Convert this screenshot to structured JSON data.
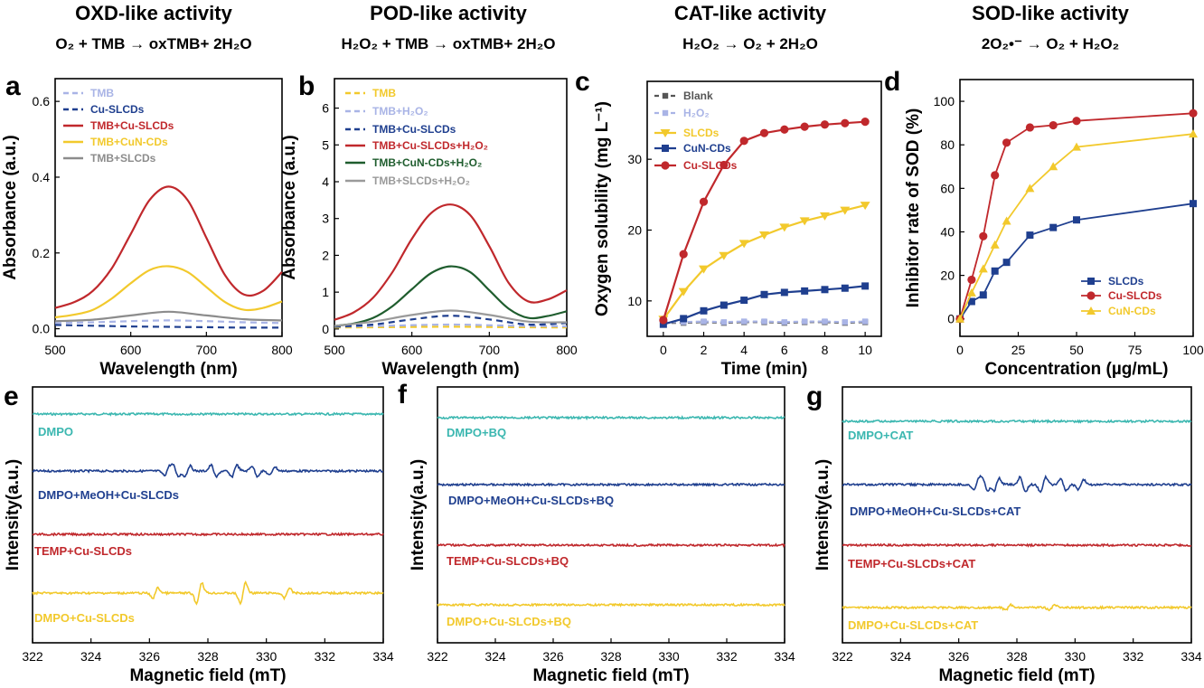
{
  "headers": [
    {
      "title": "OXD-like activity",
      "eq": "O₂ + TMB → oxTMB+ 2H₂O"
    },
    {
      "title": "POD-like activity",
      "eq": "H₂O₂ + TMB → oxTMB+ 2H₂O"
    },
    {
      "title": "CAT-like activity",
      "eq": "H₂O₂ → O₂ + 2H₂O"
    },
    {
      "title": "SOD-like activity",
      "eq": "2O₂•⁻ → O₂ + H₂O₂"
    }
  ],
  "chart_data": [
    {
      "panel": "a",
      "type": "line",
      "xlabel": "Wavelength (nm)",
      "ylabel": "Absorbance (a.u.)",
      "xlim": [
        500,
        800
      ],
      "ylim": [
        -0.02,
        0.66
      ],
      "xticks": [
        "500",
        "600",
        "700",
        "800"
      ],
      "yticks": [
        "0.0",
        "0.2",
        "0.4",
        "0.6"
      ],
      "legend_position": "top-left",
      "series": [
        {
          "name": "TMB",
          "color": "#a9b4e6",
          "dashed": true,
          "x": [
            500,
            550,
            600,
            650,
            700,
            750,
            800
          ],
          "y": [
            0.015,
            0.017,
            0.02,
            0.022,
            0.02,
            0.017,
            0.015
          ]
        },
        {
          "name": "Cu-SLCDs",
          "color": "#1f3f8f",
          "dashed": true,
          "x": [
            500,
            550,
            600,
            650,
            700,
            750,
            800
          ],
          "y": [
            0.01,
            0.008,
            0.006,
            0.005,
            0.004,
            0.003,
            0.003
          ]
        },
        {
          "name": "TMB+Cu-SLCDs",
          "color": "#c0282c",
          "x": [
            500,
            525,
            550,
            575,
            600,
            625,
            650,
            675,
            700,
            725,
            750,
            775,
            800
          ],
          "y": [
            0.055,
            0.07,
            0.1,
            0.16,
            0.25,
            0.34,
            0.375,
            0.34,
            0.24,
            0.14,
            0.09,
            0.1,
            0.15
          ]
        },
        {
          "name": "TMB+CuN-CDs",
          "color": "#f2c92c",
          "x": [
            500,
            525,
            550,
            575,
            600,
            625,
            650,
            675,
            700,
            725,
            750,
            775,
            800
          ],
          "y": [
            0.03,
            0.037,
            0.05,
            0.08,
            0.12,
            0.155,
            0.165,
            0.15,
            0.11,
            0.07,
            0.05,
            0.055,
            0.072
          ]
        },
        {
          "name": "TMB+SLCDs",
          "color": "#8c8c8c",
          "x": [
            500,
            550,
            600,
            650,
            700,
            750,
            800
          ],
          "y": [
            0.02,
            0.024,
            0.035,
            0.045,
            0.035,
            0.025,
            0.022
          ]
        }
      ]
    },
    {
      "panel": "b",
      "type": "line",
      "xlabel": "Wavelength (nm)",
      "ylabel": "Absorbance (a.u.)",
      "xlim": [
        500,
        800
      ],
      "ylim": [
        -0.2,
        6.8
      ],
      "xticks": [
        "500",
        "600",
        "700",
        "800"
      ],
      "yticks": [
        "0",
        "1",
        "2",
        "3",
        "4",
        "5",
        "6"
      ],
      "legend_position": "top-left",
      "series": [
        {
          "name": "TMB",
          "color": "#f2c92c",
          "dashed": true,
          "x": [
            500,
            575,
            650,
            725,
            800
          ],
          "y": [
            0.04,
            0.05,
            0.06,
            0.05,
            0.04
          ]
        },
        {
          "name": "TMB+H₂O₂",
          "color": "#a9b4e6",
          "dashed": true,
          "x": [
            500,
            575,
            650,
            725,
            800
          ],
          "y": [
            0.06,
            0.09,
            0.12,
            0.09,
            0.07
          ]
        },
        {
          "name": "TMB+Cu-SLCDs",
          "color": "#1f3f8f",
          "dashed": true,
          "x": [
            500,
            550,
            600,
            650,
            700,
            750,
            800
          ],
          "y": [
            0.06,
            0.12,
            0.26,
            0.36,
            0.26,
            0.12,
            0.16
          ]
        },
        {
          "name": "TMB+Cu-SLCDs+H₂O₂",
          "color": "#c0282c",
          "x": [
            500,
            525,
            550,
            575,
            600,
            625,
            650,
            675,
            700,
            725,
            750,
            775,
            800
          ],
          "y": [
            0.25,
            0.45,
            0.85,
            1.55,
            2.45,
            3.15,
            3.38,
            3.1,
            2.25,
            1.25,
            0.75,
            0.8,
            1.05
          ]
        },
        {
          "name": "TMB+CuN-CDs+H₂O₂",
          "color": "#1f5d2e",
          "x": [
            500,
            525,
            550,
            575,
            600,
            625,
            650,
            675,
            700,
            725,
            750,
            775,
            800
          ],
          "y": [
            0.08,
            0.15,
            0.3,
            0.62,
            1.08,
            1.52,
            1.7,
            1.55,
            1.05,
            0.55,
            0.3,
            0.35,
            0.48
          ]
        },
        {
          "name": "TMB+SLCDs+H₂O₂",
          "color": "#9a9a9a",
          "x": [
            500,
            550,
            600,
            650,
            700,
            750,
            800
          ],
          "y": [
            0.08,
            0.2,
            0.38,
            0.5,
            0.38,
            0.2,
            0.18
          ]
        }
      ]
    },
    {
      "panel": "c",
      "type": "line",
      "xlabel": "Time (min)",
      "ylabel": "Oxygen solubility (mg L⁻¹)",
      "xlim": [
        -0.8,
        10.8
      ],
      "ylim": [
        5,
        41
      ],
      "xticks": [
        "0",
        "2",
        "4",
        "6",
        "8",
        "10"
      ],
      "yticks": [
        "10",
        "20",
        "30"
      ],
      "legend_position": "top-left",
      "series": [
        {
          "name": "Blank",
          "color": "#555555",
          "marker": "square-small",
          "dashed": true,
          "x": [
            0,
            1,
            2,
            3,
            4,
            5,
            6,
            7,
            8,
            9,
            10
          ],
          "y": [
            6.9,
            6.9,
            7.0,
            6.9,
            7.0,
            7.0,
            6.9,
            7.0,
            7.0,
            6.9,
            7.0
          ]
        },
        {
          "name": "H₂O₂",
          "color": "#a9b4e6",
          "marker": "square-small",
          "dashed": true,
          "x": [
            0,
            1,
            2,
            3,
            4,
            5,
            6,
            7,
            8,
            9,
            10
          ],
          "y": [
            7.0,
            7.0,
            7.1,
            7.0,
            7.1,
            7.1,
            7.0,
            7.1,
            7.1,
            7.0,
            7.1
          ]
        },
        {
          "name": "SLCDs",
          "color": "#f2c92c",
          "marker": "triangle-down",
          "x": [
            0,
            1,
            2,
            3,
            4,
            5,
            6,
            7,
            8,
            9,
            10
          ],
          "y": [
            7.4,
            11.3,
            14.5,
            16.4,
            18.1,
            19.3,
            20.4,
            21.3,
            22.0,
            22.8,
            23.5
          ]
        },
        {
          "name": "CuN-CDs",
          "color": "#1f3f8f",
          "marker": "square",
          "x": [
            0,
            1,
            2,
            3,
            4,
            5,
            6,
            7,
            8,
            9,
            10
          ],
          "y": [
            6.7,
            7.5,
            8.6,
            9.4,
            10.1,
            10.9,
            11.2,
            11.4,
            11.6,
            11.8,
            12.1
          ]
        },
        {
          "name": "Cu-SLCDs",
          "color": "#c0282c",
          "marker": "circle",
          "x": [
            0,
            1,
            2,
            3,
            4,
            5,
            6,
            7,
            8,
            9,
            10
          ],
          "y": [
            7.3,
            16.6,
            24.0,
            29.2,
            32.6,
            33.7,
            34.2,
            34.6,
            34.9,
            35.1,
            35.3
          ]
        }
      ]
    },
    {
      "panel": "d",
      "type": "line",
      "xlabel": "Concentration (µg/mL)",
      "ylabel": "Inhibitor rate of SOD (%)",
      "xlim": [
        0,
        100
      ],
      "ylim": [
        -8,
        110
      ],
      "xticks": [
        "0",
        "25",
        "50",
        "75",
        "100"
      ],
      "yticks": [
        "0",
        "20",
        "40",
        "60",
        "80",
        "100"
      ],
      "legend_position": "bottom-right",
      "series": [
        {
          "name": "SLCDs",
          "color": "#1f3f8f",
          "marker": "square",
          "x": [
            0,
            5,
            10,
            15,
            20,
            30,
            40,
            50,
            100
          ],
          "y": [
            0,
            8,
            11,
            22,
            26,
            38.5,
            42,
            45.5,
            53
          ]
        },
        {
          "name": "Cu-SLCDs",
          "color": "#c0282c",
          "marker": "circle",
          "x": [
            0,
            5,
            10,
            15,
            20,
            30,
            40,
            50,
            100
          ],
          "y": [
            0,
            18,
            38,
            66,
            81,
            88,
            89,
            91,
            94.5
          ]
        },
        {
          "name": "CuN-CDs",
          "color": "#f2c92c",
          "marker": "triangle",
          "x": [
            0,
            5,
            10,
            15,
            20,
            30,
            40,
            50,
            100
          ],
          "y": [
            0,
            12,
            23,
            34,
            45,
            60,
            70,
            79,
            85
          ]
        }
      ]
    },
    {
      "panel": "e",
      "type": "line",
      "xlabel": "Magnetic field (mT)",
      "ylabel": "Intensity(a.u.)",
      "xlim": [
        322,
        334
      ],
      "xticks": [
        "322",
        "324",
        "326",
        "328",
        "330",
        "332",
        "334"
      ],
      "series": [
        {
          "name": "DMPO",
          "color": "#3bb7b0",
          "x": [
            322,
            334
          ],
          "y": [
            0,
            0
          ]
        },
        {
          "name": "DMPO+MeOH+Cu-SLCDs",
          "color": "#1f3f8f",
          "x": [
            322,
            326.6,
            326.9,
            327.3,
            328.2,
            328.9,
            329.6,
            330.2,
            334
          ],
          "y": [
            0,
            0.5,
            -0.6,
            0.6,
            -0.7,
            0.7,
            -0.6,
            0.5,
            0
          ]
        },
        {
          "name": "TEMP+Cu-SLCDs",
          "color": "#c0282c",
          "x": [
            322,
            334
          ],
          "y": [
            0,
            0
          ]
        },
        {
          "name": "DMPO+Cu-SLCDs",
          "color": "#f2c92c",
          "x": [
            322,
            326.2,
            327.7,
            329.2,
            330.7,
            334
          ],
          "y": [
            0,
            0.6,
            1.2,
            1.2,
            0.6,
            0
          ]
        }
      ]
    },
    {
      "panel": "f",
      "type": "line",
      "xlabel": "Magnetic field (mT)",
      "ylabel": "Intensity(a.u.)",
      "xlim": [
        322,
        334
      ],
      "xticks": [
        "322",
        "324",
        "326",
        "328",
        "330",
        "332",
        "334"
      ],
      "series": [
        {
          "name": "DMPO+BQ",
          "color": "#3bb7b0",
          "x": [
            322,
            334
          ],
          "y": [
            0,
            0
          ]
        },
        {
          "name": "DMPO+MeOH+Cu-SLCDs+BQ",
          "color": "#1f3f8f",
          "x": [
            322,
            334
          ],
          "y": [
            0,
            0
          ]
        },
        {
          "name": "TEMP+Cu-SLCDs+BQ",
          "color": "#c0282c",
          "x": [
            322,
            334
          ],
          "y": [
            0,
            0
          ]
        },
        {
          "name": "DMPO+Cu-SLCDs+BQ",
          "color": "#f2c92c",
          "x": [
            322,
            334
          ],
          "y": [
            0,
            0
          ]
        }
      ]
    },
    {
      "panel": "g",
      "type": "line",
      "xlabel": "Magnetic field (mT)",
      "ylabel": "Intensity(a.u.)",
      "xlim": [
        322,
        334
      ],
      "xticks": [
        "322",
        "324",
        "326",
        "328",
        "330",
        "332",
        "334"
      ],
      "series": [
        {
          "name": "DMPO+CAT",
          "color": "#3bb7b0",
          "x": [
            322,
            334
          ],
          "y": [
            0,
            0
          ]
        },
        {
          "name": "DMPO+MeOH+Cu-SLCDs+CAT",
          "color": "#1f3f8f",
          "x": [
            322,
            326.6,
            326.9,
            327.3,
            328.2,
            328.9,
            329.6,
            330.2,
            334
          ],
          "y": [
            0,
            0.5,
            -0.6,
            0.6,
            -0.7,
            0.7,
            -0.6,
            0.5,
            0
          ]
        },
        {
          "name": "TEMP+Cu-SLCDs+CAT",
          "color": "#c0282c",
          "x": [
            322,
            334
          ],
          "y": [
            0,
            0
          ]
        },
        {
          "name": "DMPO+Cu-SLCDs+CAT",
          "color": "#f2c92c",
          "x": [
            322,
            327.7,
            329.2,
            334
          ],
          "y": [
            0,
            0.25,
            0.25,
            0
          ]
        }
      ]
    }
  ]
}
